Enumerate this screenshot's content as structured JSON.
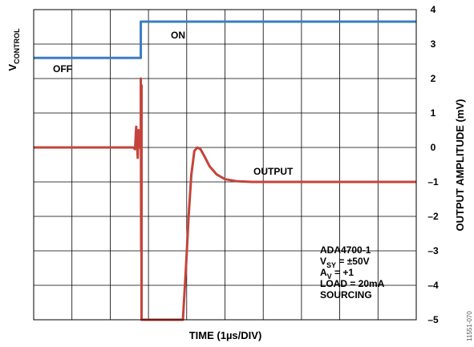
{
  "chart_data": {
    "type": "line",
    "xlabel": "TIME (1µs/DIV)",
    "ylabel_right": "OUTPUT AMPLITUDE (mV)",
    "ylabel_left": {
      "main": "V",
      "sub": "CONTROL"
    },
    "ylim": [
      -5,
      4
    ],
    "yticks": [
      "4",
      "3",
      "2",
      "1",
      "0",
      "–1",
      "–2",
      "–3",
      "–4",
      "–5"
    ],
    "ytick_values": [
      4,
      3,
      2,
      1,
      0,
      -1,
      -2,
      -3,
      -4,
      -5
    ],
    "x_divisions": 10,
    "grid": true,
    "series": [
      {
        "name": "V_CONTROL",
        "color": "#3d7cc1",
        "x": [
          0,
          2.8,
          2.8,
          10
        ],
        "y": [
          2.6,
          2.6,
          3.65,
          3.65
        ]
      },
      {
        "name": "OUTPUT",
        "color": "#c4443b",
        "x": [
          0,
          2.6,
          2.65,
          2.68,
          2.72,
          2.74,
          2.76,
          2.78,
          2.8,
          2.8,
          2.81,
          2.82,
          2.82,
          3.9,
          3.98,
          4.05,
          4.12,
          4.2,
          4.28,
          4.36,
          4.46,
          4.6,
          4.78,
          5.0,
          5.3,
          5.7,
          6.3,
          7.0,
          8.0,
          9.0,
          10
        ],
        "y": [
          0,
          0,
          -0.05,
          0.6,
          -0.3,
          0.5,
          0,
          0.1,
          0,
          2.0,
          -3.0,
          1.8,
          -5.0,
          -5.0,
          -3.5,
          -2.0,
          -0.8,
          -0.1,
          0.0,
          -0.05,
          -0.25,
          -0.55,
          -0.78,
          -0.92,
          -0.98,
          -1.0,
          -1.0,
          -1.0,
          -1.0,
          -1.0,
          -1.0
        ]
      }
    ],
    "annotations": {
      "off": "OFF",
      "on": "ON",
      "output": "OUTPUT"
    },
    "conditions": [
      {
        "main": "ADA4700-1",
        "sub": "",
        "rest": ""
      },
      {
        "main": "V",
        "sub": "SY",
        "rest": " = ±50V"
      },
      {
        "main": "A",
        "sub": "V",
        "rest": " = +1"
      },
      {
        "main": "LOAD = 20mA",
        "sub": "",
        "rest": ""
      },
      {
        "main": "SOURCING",
        "sub": "",
        "rest": ""
      }
    ]
  },
  "figure_id": "11551-070"
}
